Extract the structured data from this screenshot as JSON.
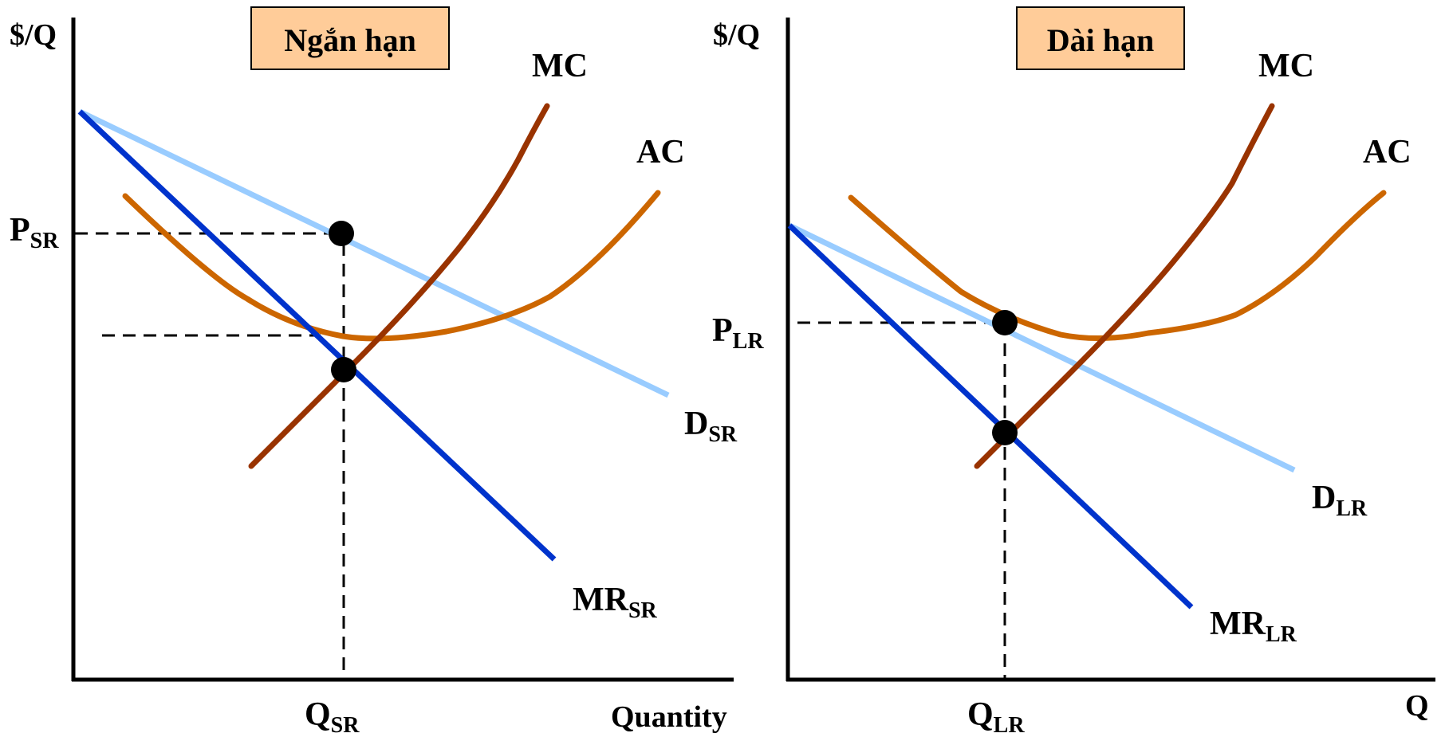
{
  "left": {
    "title": "Ngắn hạn",
    "y_axis_label": "$/Q",
    "x_axis_label": "Quantity",
    "mc_label": "MC",
    "ac_label": "AC",
    "demand": {
      "main": "D",
      "sub": "SR"
    },
    "mr": {
      "main": "MR",
      "sub": "SR"
    },
    "price": {
      "main": "P",
      "sub": "SR"
    },
    "quantity": {
      "main": "Q",
      "sub": "SR"
    }
  },
  "right": {
    "title": "Dài hạn",
    "y_axis_label": "$/Q",
    "x_axis_label": "Q",
    "mc_label": "MC",
    "ac_label": "AC",
    "demand": {
      "main": "D",
      "sub": "LR"
    },
    "mr": {
      "main": "MR",
      "sub": "LR"
    },
    "price": {
      "main": "P",
      "sub": "LR"
    },
    "quantity": {
      "main": "Q",
      "sub": "LR"
    }
  },
  "colors": {
    "mc": "#993300",
    "ac": "#CC6600",
    "demand": "#99CCFF",
    "mr": "#0033CC",
    "title_box": "#FFCC99",
    "dashed": "#000000",
    "point": "#000000"
  }
}
